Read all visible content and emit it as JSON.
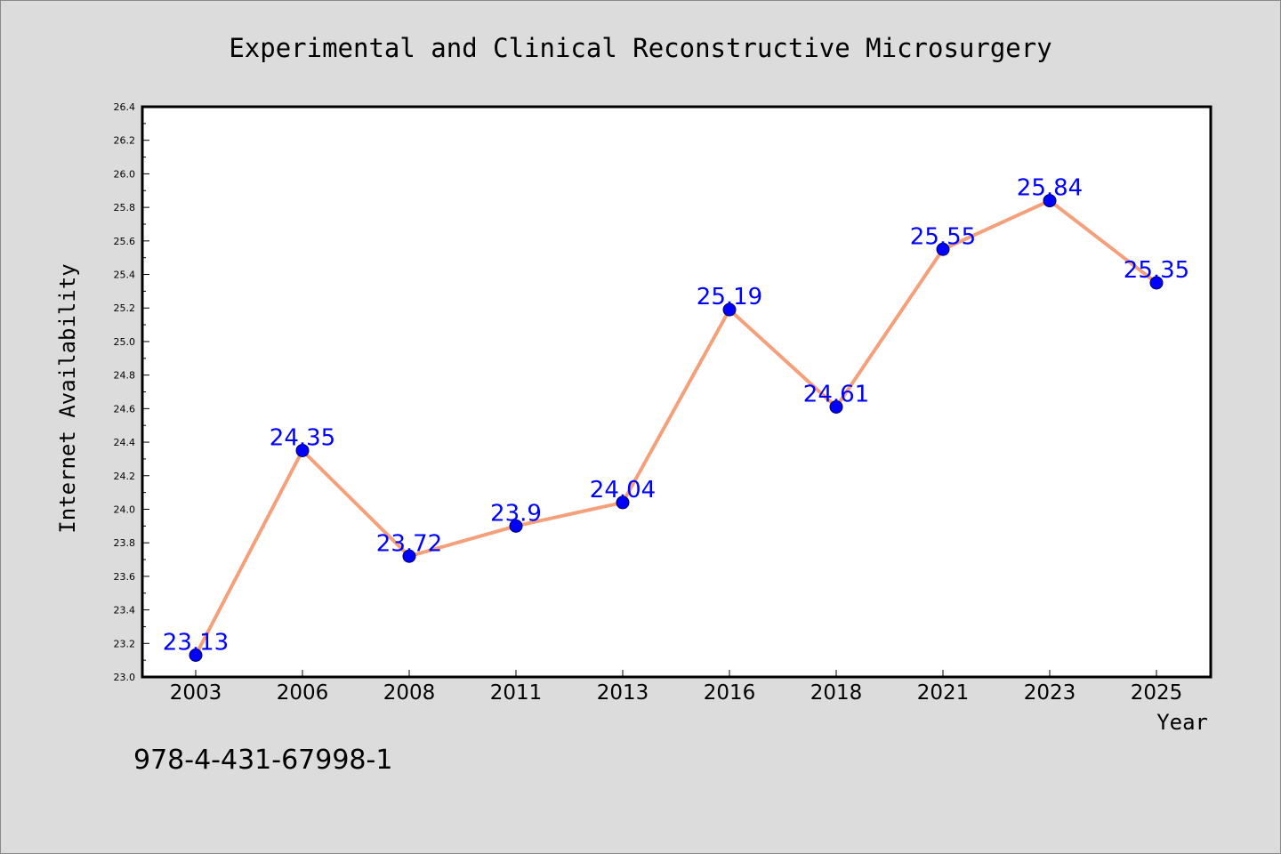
{
  "chart_data": {
    "type": "line",
    "title": "Experimental and Clinical Reconstructive Microsurgery",
    "xlabel": "Year",
    "ylabel": "Internet Availability",
    "categories": [
      "2003",
      "2006",
      "2008",
      "2011",
      "2013",
      "2016",
      "2018",
      "2021",
      "2023",
      "2025"
    ],
    "values": [
      23.13,
      24.35,
      23.72,
      23.9,
      24.04,
      25.19,
      24.61,
      25.55,
      25.84,
      25.35
    ],
    "data_labels": [
      "23.13",
      "24.35",
      "23.72",
      "23.9",
      "24.04",
      "25.19",
      "24.61",
      "25.55",
      "25.84",
      "25.35"
    ],
    "ylim": [
      23.0,
      26.4
    ],
    "yticks": [
      "23.0",
      "23.2",
      "23.4",
      "23.6",
      "23.8",
      "24.0",
      "24.2",
      "24.4",
      "24.6",
      "24.8",
      "25.0",
      "25.2",
      "25.4",
      "25.6",
      "25.8",
      "26.0",
      "26.2",
      "26.4"
    ],
    "grid": false,
    "legend": "none",
    "line_color": "#f4a07a",
    "marker_color": "#0000ff",
    "label_color": "#0000ff"
  },
  "footer": {
    "isbn": "978-4-431-67998-1"
  }
}
